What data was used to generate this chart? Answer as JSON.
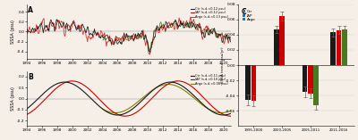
{
  "panel_A": {
    "title": "A",
    "ylabel": "SSSA (psu)",
    "xlim": [
      1994,
      2021
    ],
    "ylim": [
      -0.55,
      0.55
    ],
    "yticks": [
      -0.4,
      -0.2,
      0.0,
      0.2,
      0.4
    ],
    "xticks": [
      1994,
      1996,
      1998,
      2000,
      2002,
      2004,
      2006,
      2008,
      2010,
      2012,
      2014,
      2016,
      2018,
      2020
    ],
    "legend": [
      {
        "label": "Ctr (s.d.=0.12 psu)",
        "color": "#1a1a1a"
      },
      {
        "label": "IAP (s.d.=0.12 psu)",
        "color": "#cc0000"
      },
      {
        "label": "Argo (s.d.=0.13 psu)",
        "color": "#4a7a20"
      }
    ]
  },
  "panel_B": {
    "title": "B",
    "ylabel": "SSSA (psu)",
    "xlim": [
      1994,
      2021
    ],
    "ylim": [
      -0.25,
      0.25
    ],
    "yticks": [
      -0.2,
      -0.1,
      0.0,
      0.1,
      0.2
    ],
    "xticks": [
      1994,
      1996,
      1998,
      2000,
      2002,
      2004,
      2006,
      2008,
      2010,
      2012,
      2014,
      2016,
      2018,
      2020
    ],
    "legend": [
      {
        "label": "Ctr (s.d.=0.11 psu)",
        "color": "#1a1a1a"
      },
      {
        "label": "IAP (s.d.=0.10 psu)",
        "color": "#cc0000"
      },
      {
        "label": "Argo (s.d.=0.08 psu)",
        "color": "#808000"
      }
    ]
  },
  "panel_C": {
    "title": "C",
    "ylabel": "SSSA trend (psu/yr)",
    "ylim": [
      -0.08,
      0.08
    ],
    "yticks": [
      -0.06,
      -0.04,
      -0.02,
      0.0,
      0.02,
      0.04,
      0.06,
      0.08
    ],
    "periods": [
      "1995-2000",
      "2000-2005",
      "2005-2011",
      "2011-2016"
    ],
    "bar_width": 0.2,
    "data": {
      "Ctr": {
        "color": "#1a1a1a",
        "values": [
          -0.046,
          0.047,
          -0.035,
          0.043
        ],
        "errors": [
          0.007,
          0.005,
          0.007,
          0.005
        ]
      },
      "IAP": {
        "color": "#cc0000",
        "values": [
          -0.047,
          0.064,
          -0.037,
          0.046
        ],
        "errors": [
          0.007,
          0.006,
          0.006,
          0.005
        ]
      },
      "Argo": {
        "color": "#4a7a20",
        "values": [
          null,
          null,
          -0.053,
          0.047
        ],
        "errors": [
          null,
          null,
          0.006,
          0.005
        ]
      }
    },
    "legend": [
      {
        "label": "Ctr",
        "color": "#1a1a1a"
      },
      {
        "label": "IAP",
        "color": "#cc0000"
      },
      {
        "label": "Argo",
        "color": "#4a7a20"
      }
    ]
  },
  "bg_color": "#f5efe8"
}
